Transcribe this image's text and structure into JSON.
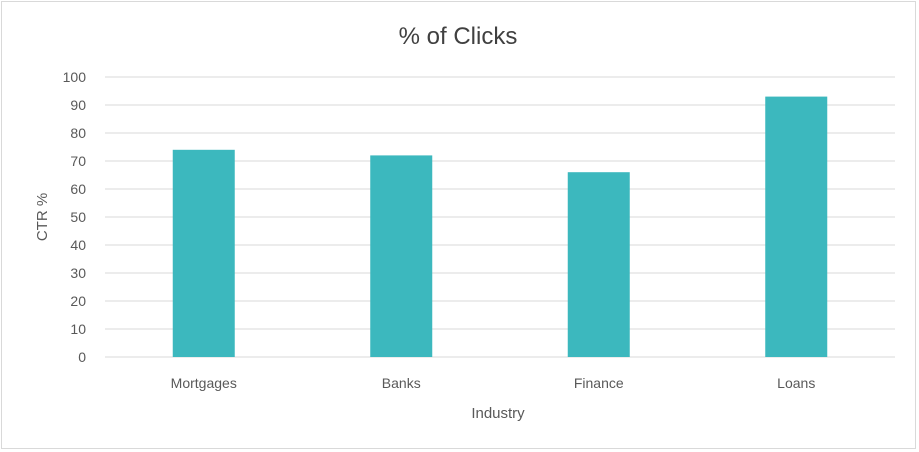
{
  "chart_data": {
    "type": "bar",
    "title": "% of Clicks",
    "xlabel": "Industry",
    "ylabel": "CTR %",
    "categories": [
      "Mortgages",
      "Banks",
      "Finance",
      "Loans"
    ],
    "values": [
      74,
      72,
      66,
      93
    ],
    "ylim": [
      0,
      100
    ],
    "yticks": [
      "0",
      "10",
      "20",
      "30",
      "40",
      "50",
      "60",
      "70",
      "80",
      "90",
      "100"
    ],
    "grid": true,
    "legend": "none",
    "bar_color": "#3cb8be",
    "grid_color": "#d9d9d9"
  }
}
